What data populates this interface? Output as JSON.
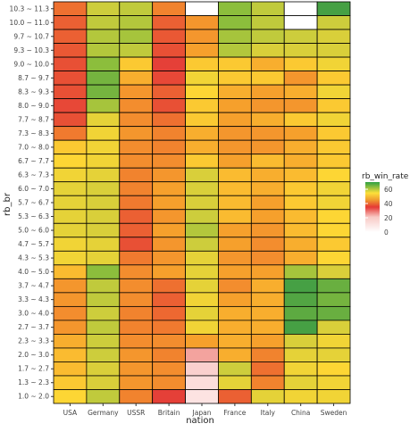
{
  "chart_data": {
    "type": "heatmap",
    "xlabel": "nation",
    "ylabel": "rb_br",
    "legend": {
      "title": "rb_win_rate",
      "ticks": [
        60,
        40,
        20,
        0
      ],
      "position": "right"
    },
    "x": [
      "USA",
      "Germany",
      "USSR",
      "Britain",
      "Japan",
      "France",
      "Italy",
      "China",
      "Sweden"
    ],
    "y": [
      "10.3 ~ 11.3",
      "10.0 ~ 11.0",
      "9.7 ~ 10.7",
      "9.3 ~ 10.3",
      "9.0 ~ 10.0",
      "8.7 ~ 9.7",
      "8.3 ~ 9.3",
      "8.0 ~ 9.0",
      "7.7 ~ 8.7",
      "7.3 ~ 8.3",
      "7.0 ~ 8.0",
      "6.7 ~ 7.7",
      "6.3 ~ 7.3",
      "6.0 ~ 7.0",
      "5.7 ~ 6.7",
      "5.3 ~ 6.3",
      "5.0 ~ 6.0",
      "4.7 ~ 5.7",
      "4.3 ~ 5.3",
      "4.0 ~ 5.0",
      "3.7 ~ 4.7",
      "3.3 ~ 4.3",
      "3.0 ~ 4.0",
      "2.7 ~ 3.7",
      "2.3 ~ 3.3",
      "2.0 ~ 3.0",
      "1.7 ~ 2.7",
      "1.3 ~ 2.3",
      "1.0 ~ 2.0"
    ],
    "values": [
      [
        42,
        55,
        56,
        44,
        null,
        60,
        56,
        null,
        68
      ],
      [
        40,
        56,
        57,
        40,
        46,
        60,
        56,
        null,
        55
      ],
      [
        40,
        57,
        58,
        39,
        46,
        58,
        56,
        55,
        54
      ],
      [
        39,
        57,
        56,
        38,
        47,
        57,
        54,
        54,
        54
      ],
      [
        38,
        60,
        50,
        36,
        50,
        50,
        48,
        50,
        52
      ],
      [
        38,
        62,
        48,
        37,
        52,
        50,
        50,
        46,
        50
      ],
      [
        38,
        62,
        46,
        40,
        51,
        48,
        47,
        48,
        52
      ],
      [
        37,
        58,
        45,
        38,
        50,
        47,
        46,
        46,
        50
      ],
      [
        38,
        53,
        45,
        42,
        50,
        47,
        48,
        50,
        52
      ],
      [
        43,
        52,
        46,
        44,
        48,
        46,
        46,
        47,
        50
      ],
      [
        50,
        52,
        45,
        44,
        48,
        46,
        46,
        48,
        50
      ],
      [
        51,
        52,
        45,
        45,
        50,
        47,
        49,
        48,
        50
      ],
      [
        52,
        53,
        44,
        46,
        54,
        49,
        48,
        49,
        51
      ],
      [
        53,
        54,
        44,
        47,
        54,
        49,
        48,
        50,
        52
      ],
      [
        53,
        54,
        43,
        47,
        54,
        49,
        47,
        50,
        52
      ],
      [
        53,
        54,
        40,
        46,
        55,
        49,
        47,
        49,
        51
      ],
      [
        53,
        54,
        40,
        47,
        57,
        47,
        46,
        49,
        51
      ],
      [
        52,
        53,
        38,
        46,
        55,
        47,
        45,
        48,
        50
      ],
      [
        52,
        53,
        43,
        46,
        53,
        46,
        45,
        48,
        51
      ],
      [
        49,
        60,
        45,
        47,
        53,
        47,
        47,
        58,
        54
      ],
      [
        46,
        56,
        45,
        42,
        53,
        45,
        48,
        66,
        63
      ],
      [
        46,
        56,
        45,
        40,
        52,
        47,
        48,
        65,
        62
      ],
      [
        45,
        55,
        44,
        41,
        53,
        48,
        48,
        64,
        63
      ],
      [
        46,
        56,
        44,
        43,
        52,
        48,
        48,
        66,
        54
      ],
      [
        48,
        55,
        45,
        45,
        47,
        48,
        47,
        54,
        52
      ],
      [
        49,
        55,
        46,
        44,
        30,
        48,
        44,
        53,
        53
      ],
      [
        49,
        54,
        46,
        45,
        24,
        55,
        42,
        52,
        51
      ],
      [
        50,
        54,
        46,
        45,
        20,
        53,
        44,
        53,
        52
      ],
      [
        51,
        56,
        44,
        36,
        18,
        40,
        53,
        52,
        52
      ]
    ]
  }
}
